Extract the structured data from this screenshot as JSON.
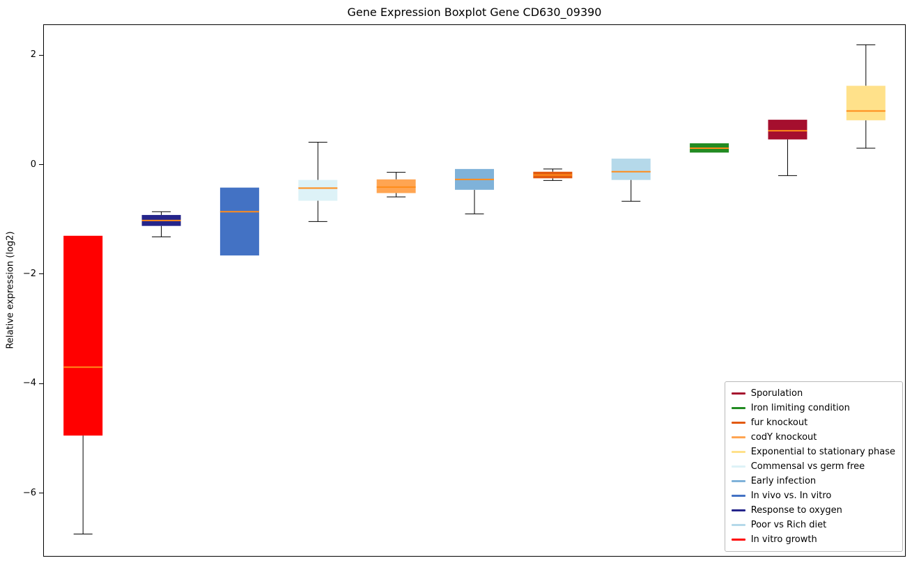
{
  "title": "Gene Expression Boxplot Gene CD630_09390",
  "ylabel": "Relative expression (log2)",
  "chart_data": {
    "type": "boxplot",
    "title": "Gene Expression Boxplot Gene CD630_09390",
    "ylabel": "Relative expression (log2)",
    "ylim": [
      -7.15,
      2.55
    ],
    "yticks": [
      2,
      0,
      -2,
      -4,
      -6
    ],
    "median_color": "#ff8c1a",
    "whisker_color": "#000000",
    "legend_position": "lower right",
    "series": [
      {
        "name": "In vitro growth",
        "color": "#ff0000",
        "whislo": -6.75,
        "q1": -4.95,
        "median": -3.7,
        "q3": -1.3,
        "whishi": -1.3
      },
      {
        "name": "Response to oxygen",
        "color": "#25258b",
        "whislo": -1.32,
        "q1": -1.12,
        "median": -1.02,
        "q3": -0.92,
        "whishi": -0.86
      },
      {
        "name": "In vivo vs. In vitro",
        "color": "#4372c4",
        "whislo": -1.66,
        "q1": -1.66,
        "median": -0.86,
        "q3": -0.42,
        "whishi": -0.42
      },
      {
        "name": "Commensal vs germ free",
        "color": "#ddf2f7",
        "whislo": -1.04,
        "q1": -0.66,
        "median": -0.43,
        "q3": -0.28,
        "whishi": 0.41
      },
      {
        "name": "codY knockout",
        "color": "#ffa552",
        "whislo": -0.59,
        "q1": -0.52,
        "median": -0.41,
        "q3": -0.27,
        "whishi": -0.14
      },
      {
        "name": "Early infection",
        "color": "#7fb2d9",
        "whislo": -0.9,
        "q1": -0.46,
        "median": -0.27,
        "q3": -0.08,
        "whishi": -0.08
      },
      {
        "name": "fur knockout",
        "color": "#e2590f",
        "whislo": -0.29,
        "q1": -0.25,
        "median": -0.19,
        "q3": -0.13,
        "whishi": -0.08
      },
      {
        "name": "Poor vs Rich diet",
        "color": "#b5d9ea",
        "whislo": -0.67,
        "q1": -0.28,
        "median": -0.13,
        "q3": 0.11,
        "whishi": 0.11
      },
      {
        "name": "Iron limiting condition",
        "color": "#228b22",
        "whislo": 0.22,
        "q1": 0.22,
        "median": 0.3,
        "q3": 0.39,
        "whishi": 0.39
      },
      {
        "name": "Sporulation",
        "color": "#a50f2e",
        "whislo": -0.2,
        "q1": 0.46,
        "median": 0.62,
        "q3": 0.82,
        "whishi": 0.82
      },
      {
        "name": "Exponential to stationary phase",
        "color": "#ffe18a",
        "whislo": 0.3,
        "q1": 0.81,
        "median": 0.98,
        "q3": 1.44,
        "whishi": 2.19
      }
    ],
    "legend": [
      {
        "label": "Sporulation",
        "color": "#a50f2e"
      },
      {
        "label": "Iron limiting condition",
        "color": "#228b22"
      },
      {
        "label": "fur knockout",
        "color": "#e2590f"
      },
      {
        "label": "codY knockout",
        "color": "#ffa552"
      },
      {
        "label": "Exponential to stationary phase",
        "color": "#ffe18a"
      },
      {
        "label": "Commensal vs germ free",
        "color": "#ddf2f7"
      },
      {
        "label": "Early infection",
        "color": "#7fb2d9"
      },
      {
        "label": "In vivo vs. In vitro",
        "color": "#4372c4"
      },
      {
        "label": "Response to oxygen",
        "color": "#25258b"
      },
      {
        "label": "Poor vs Rich diet",
        "color": "#b5d9ea"
      },
      {
        "label": "In vitro growth",
        "color": "#ff0000"
      }
    ]
  }
}
